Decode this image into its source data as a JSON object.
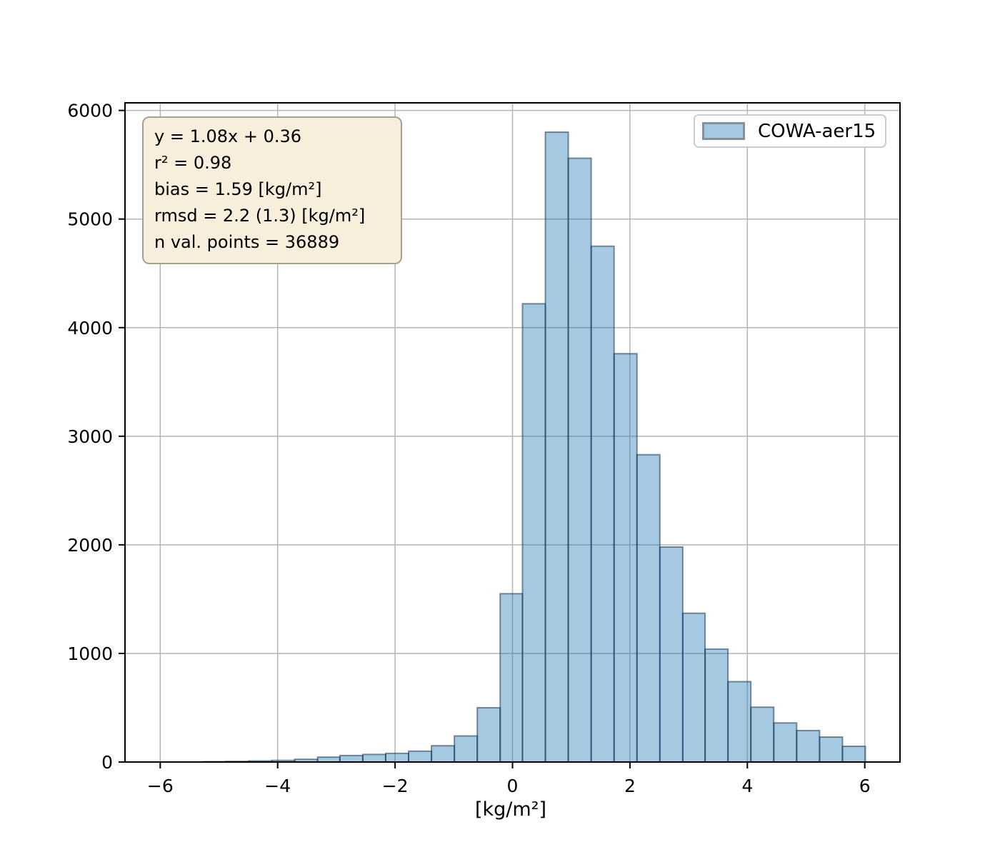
{
  "figure": {
    "background": "#ffffff"
  },
  "chart_data": {
    "type": "bar",
    "subtype": "histogram",
    "title": "",
    "xlabel": "[kg/m²]",
    "ylabel": "",
    "xlim": [
      -6.6,
      6.6
    ],
    "ylim": [
      0,
      6070
    ],
    "grid": true,
    "x_ticks": [
      -6,
      -4,
      -2,
      0,
      2,
      4,
      6
    ],
    "x_tick_labels": [
      "−6",
      "−4",
      "−2",
      "0",
      "2",
      "4",
      "6"
    ],
    "y_ticks": [
      0,
      1000,
      2000,
      3000,
      4000,
      5000,
      6000
    ],
    "y_tick_labels": [
      "0",
      "1000",
      "2000",
      "3000",
      "4000",
      "5000",
      "6000"
    ],
    "legend": {
      "position": "upper right",
      "entries": [
        "COWA-aer15"
      ]
    },
    "series": [
      {
        "name": "COWA-aer15",
        "bin_edges": [
          -5.27,
          -4.88,
          -4.49,
          -4.1,
          -3.71,
          -3.32,
          -2.94,
          -2.55,
          -2.16,
          -1.77,
          -1.38,
          -0.99,
          -0.6,
          -0.21,
          0.17,
          0.56,
          0.95,
          1.34,
          1.73,
          2.12,
          2.51,
          2.9,
          3.28,
          3.67,
          4.06,
          4.45,
          4.84,
          5.23,
          5.62,
          6.01
        ],
        "counts": [
          3,
          6,
          10,
          15,
          25,
          45,
          60,
          70,
          80,
          100,
          150,
          240,
          500,
          1550,
          4220,
          5800,
          5560,
          4750,
          3760,
          2830,
          1980,
          1370,
          1040,
          740,
          505,
          360,
          290,
          230,
          145
        ]
      }
    ],
    "colors": {
      "bar_fill": "rgba(31,119,180,0.40)",
      "bar_edge": "rgba(23,54,84,0.55)",
      "grid": "#b4b4b4",
      "spine": "#000000",
      "annotation_bg": "#f7efdc",
      "annotation_border": "#a89f90"
    }
  },
  "annotation_box": {
    "lines": [
      "y = 1.08x + 0.36",
      "r² = 0.98",
      "bias = 1.59 [kg/m²]",
      "rmsd = 2.2 (1.3) [kg/m²]",
      "n val. points = 36889"
    ]
  },
  "legend": {
    "label": "COWA-aer15"
  }
}
